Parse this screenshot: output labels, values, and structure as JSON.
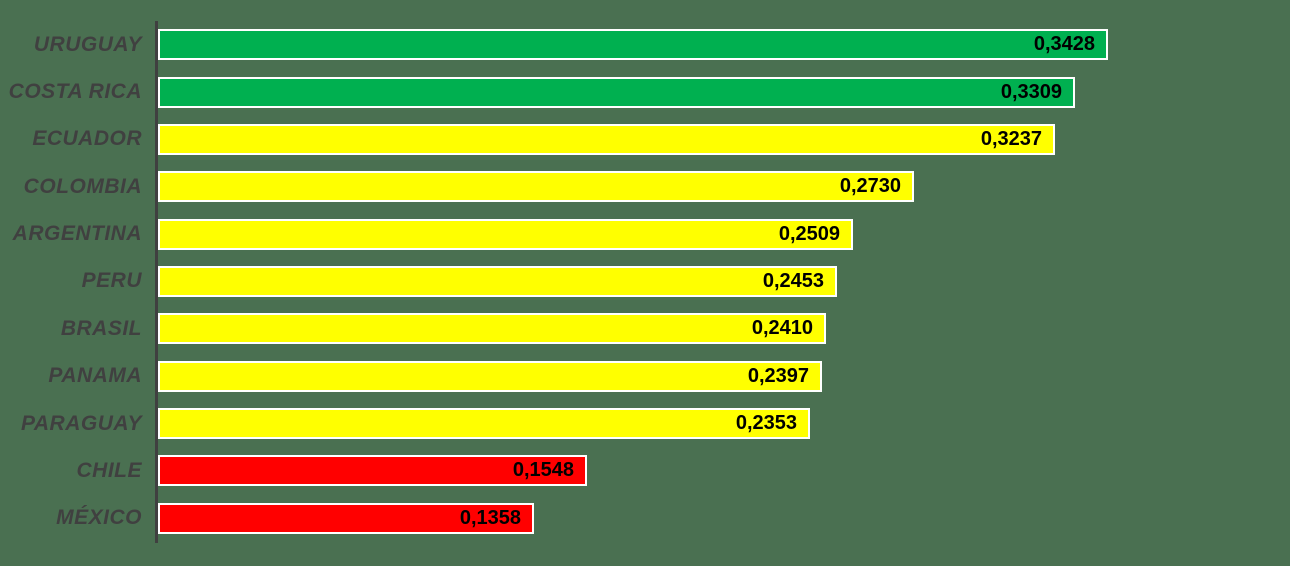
{
  "chart_data": {
    "type": "bar",
    "orientation": "horizontal",
    "title": "",
    "xlabel": "",
    "ylabel": "",
    "xlim": [
      0,
      0.35
    ],
    "grid": false,
    "legend": false,
    "decimal_separator": ",",
    "categories": [
      "URUGUAY",
      "COSTA RICA",
      "ECUADOR",
      "COLOMBIA",
      "ARGENTINA",
      "PERU",
      "BRASIL",
      "PANAMA",
      "PARAGUAY",
      "CHILE",
      "MÉXICO"
    ],
    "values": [
      0.3428,
      0.3309,
      0.3237,
      0.273,
      0.2509,
      0.2453,
      0.241,
      0.2397,
      0.2353,
      0.1548,
      0.1358
    ],
    "value_labels": [
      "0,3428",
      "0,3309",
      "0,3237",
      "0,2730",
      "0,2509",
      "0,2453",
      "0,2410",
      "0,2397",
      "0,2353",
      "0,1548",
      "0,1358"
    ],
    "bar_colors": [
      "#00B050",
      "#00B050",
      "#FFFF00",
      "#FFFF00",
      "#FFFF00",
      "#FFFF00",
      "#FFFF00",
      "#FFFF00",
      "#FFFF00",
      "#FF0000",
      "#FF0000"
    ],
    "colors": {
      "background": "#4A7051",
      "axis": "#404040",
      "category_label": "#404040",
      "value_label": "#000000",
      "bar_border": "#FFFFFF"
    }
  }
}
